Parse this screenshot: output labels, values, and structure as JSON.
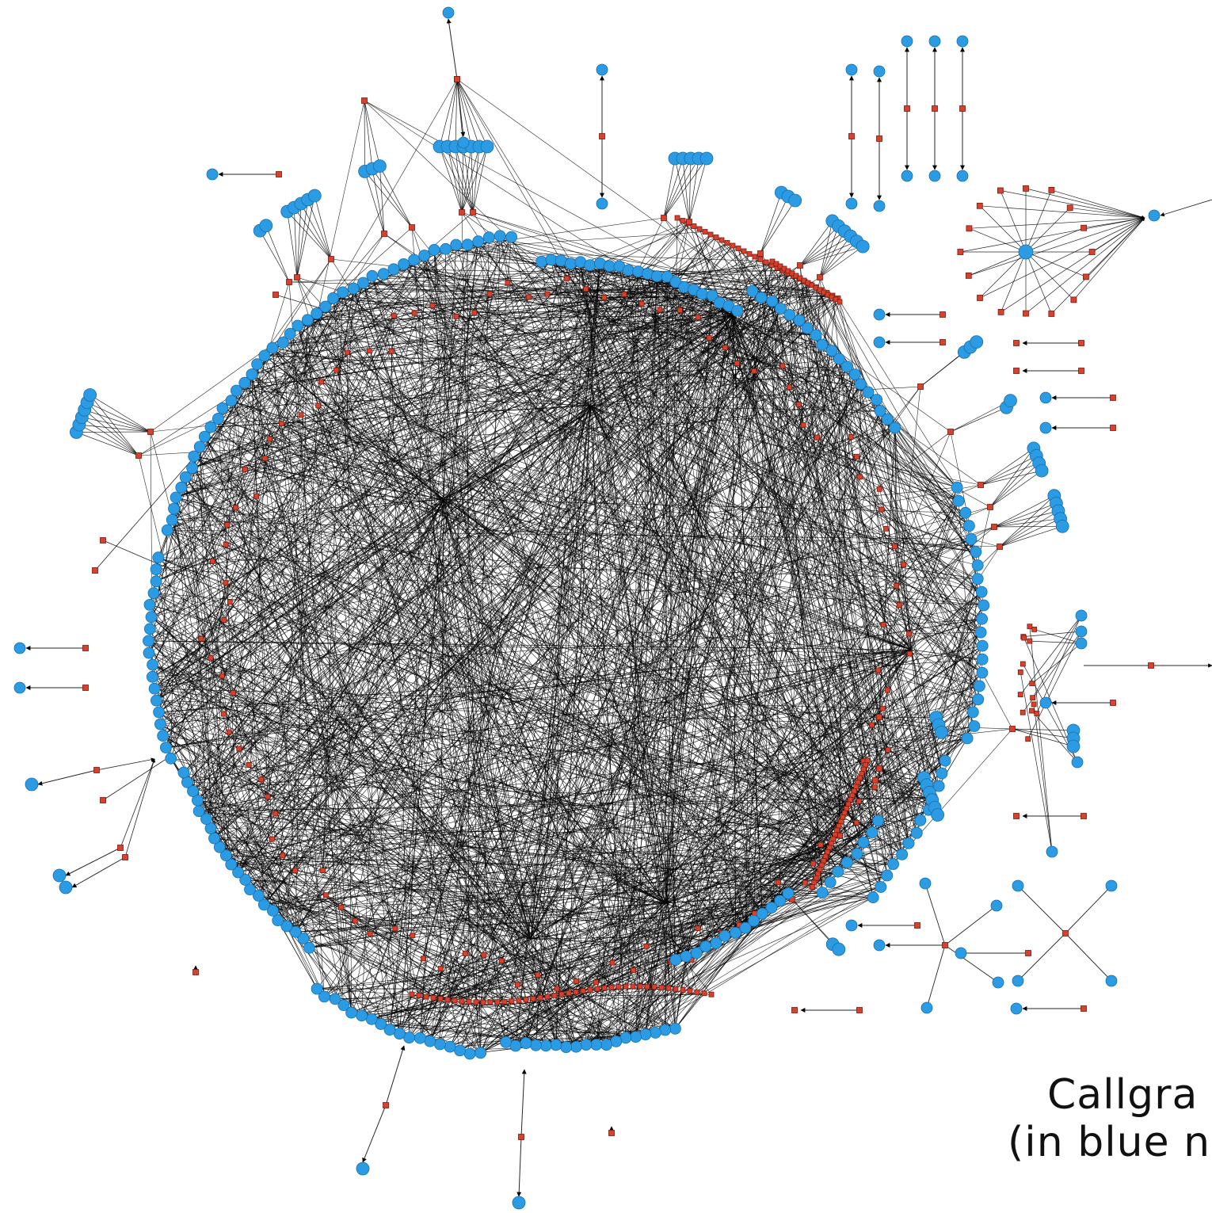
{
  "caption": {
    "line1": "Callgra",
    "line2": "(in blue n"
  },
  "colors": {
    "function_node": "#2b9be3",
    "function_node_stroke": "#1a6fae",
    "call_node": "#d8412b",
    "call_node_stroke": "#7a1a10",
    "edge": "#000000",
    "background": "#ffffff"
  },
  "legend": {
    "blue_circle": "function node",
    "red_square": "call-site node"
  }
}
